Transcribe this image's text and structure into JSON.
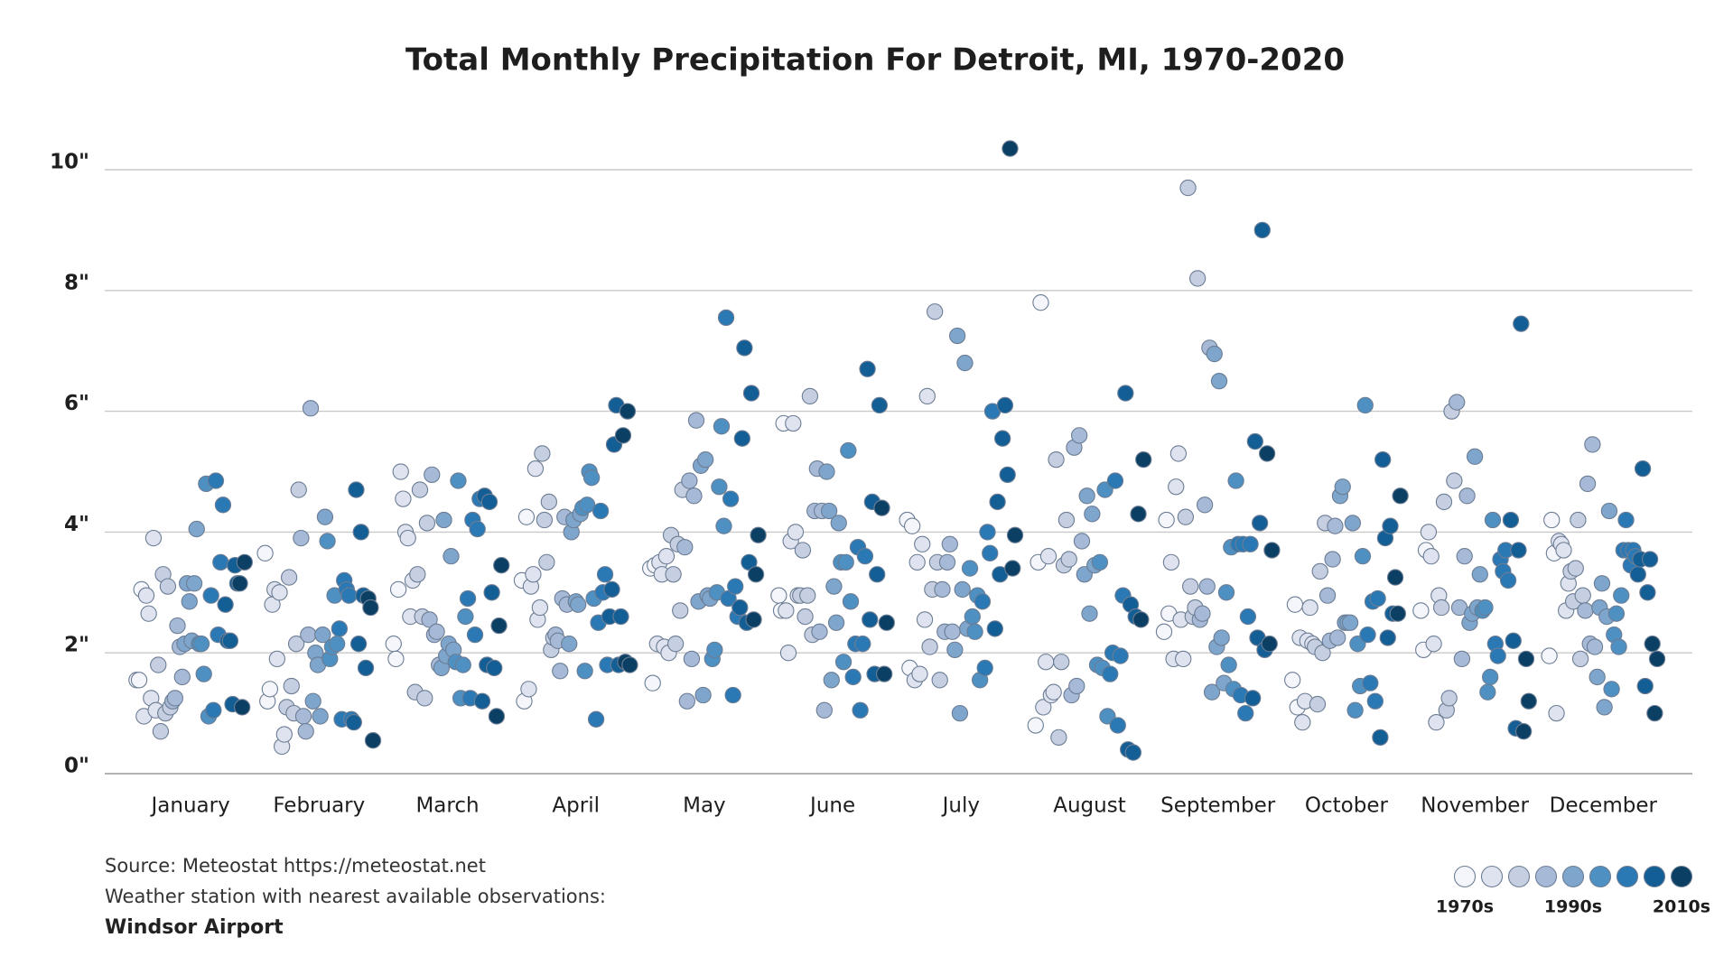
{
  "chart_data": {
    "type": "strip",
    "title": "Total Monthly Precipitation For Detroit, MI, 1970-2020",
    "ylim": [
      0,
      10
    ],
    "yticks": [
      {
        "value": 0,
        "label": "0\""
      },
      {
        "value": 2,
        "label": "2\""
      },
      {
        "value": 4,
        "label": "4\""
      },
      {
        "value": 6,
        "label": "6\""
      },
      {
        "value": 8,
        "label": "8\""
      },
      {
        "value": 10,
        "label": "10\""
      }
    ],
    "grid": true,
    "series": [
      {
        "name": "January",
        "values": [
          1.55,
          1.55,
          3.05,
          0.95,
          2.95,
          2.65,
          1.25,
          3.9,
          1.05,
          1.8,
          0.7,
          3.3,
          1.0,
          3.1,
          1.1,
          1.2,
          1.25,
          2.45,
          2.1,
          1.6,
          2.15,
          3.15,
          2.85,
          2.2,
          3.15,
          4.05,
          2.15,
          2.15,
          1.65,
          4.8,
          0.95,
          2.95,
          1.05,
          4.85,
          2.3,
          3.5,
          4.45,
          2.8,
          2.2,
          2.2,
          1.15,
          3.45,
          3.15,
          3.15,
          1.1,
          3.5
        ]
      },
      {
        "name": "February",
        "values": [
          3.65,
          1.2,
          1.4,
          2.8,
          3.05,
          1.9,
          3.0,
          0.45,
          0.65,
          1.1,
          3.25,
          1.45,
          1.0,
          2.15,
          4.7,
          3.9,
          0.95,
          0.7,
          2.3,
          6.05,
          1.2,
          2.0,
          1.8,
          0.95,
          2.3,
          4.25,
          3.85,
          1.9,
          2.1,
          2.95,
          2.15,
          2.4,
          0.9,
          3.2,
          3.05,
          2.95,
          0.9,
          0.85,
          4.7,
          2.15,
          4.0,
          2.95,
          1.75,
          2.9,
          2.75,
          0.55
        ]
      },
      {
        "name": "March",
        "values": [
          2.15,
          1.9,
          3.05,
          5.0,
          4.55,
          4.0,
          3.9,
          2.6,
          3.2,
          1.35,
          3.3,
          4.7,
          2.6,
          1.25,
          4.15,
          2.55,
          4.95,
          2.3,
          2.35,
          1.8,
          1.75,
          4.2,
          1.95,
          2.15,
          3.6,
          2.05,
          1.85,
          4.85,
          1.25,
          1.8,
          2.6,
          2.9,
          1.25,
          4.2,
          2.3,
          4.05,
          4.55,
          1.2,
          4.6,
          1.8,
          4.5,
          3.0,
          1.75,
          0.95,
          2.45,
          3.45
        ]
      },
      {
        "name": "April",
        "values": [
          3.2,
          1.2,
          4.25,
          1.4,
          3.1,
          3.3,
          5.05,
          2.55,
          2.75,
          5.3,
          4.2,
          3.5,
          4.5,
          2.05,
          2.25,
          2.3,
          2.2,
          1.7,
          2.9,
          4.25,
          2.8,
          2.15,
          4.0,
          4.2,
          2.85,
          2.8,
          4.3,
          4.4,
          1.7,
          4.45,
          5.0,
          4.9,
          2.9,
          0.9,
          2.5,
          4.35,
          3.0,
          3.3,
          1.8,
          2.6,
          3.05,
          5.45,
          6.1,
          1.8,
          2.6,
          5.6,
          1.85,
          6.0,
          1.8
        ]
      },
      {
        "name": "May",
        "values": [
          3.4,
          1.5,
          3.45,
          2.15,
          3.5,
          3.3,
          2.1,
          3.6,
          2.0,
          3.95,
          3.3,
          2.15,
          3.8,
          2.7,
          4.7,
          3.75,
          1.2,
          4.85,
          1.9,
          4.6,
          5.85,
          2.85,
          5.1,
          1.3,
          5.2,
          2.95,
          2.9,
          1.9,
          2.05,
          3.0,
          4.75,
          5.75,
          4.1,
          7.55,
          2.9,
          4.55,
          1.3,
          3.1,
          2.6,
          2.75,
          5.55,
          7.05,
          2.5,
          3.5,
          6.3,
          2.55,
          3.3,
          3.95
        ]
      },
      {
        "name": "June",
        "values": [
          2.95,
          2.7,
          5.8,
          2.7,
          2.0,
          3.85,
          5.8,
          4.0,
          2.95,
          2.95,
          3.7,
          2.6,
          2.95,
          6.25,
          2.3,
          4.35,
          5.05,
          2.35,
          4.35,
          1.05,
          5.0,
          4.35,
          1.55,
          3.1,
          2.5,
          4.15,
          3.5,
          1.85,
          3.5,
          5.35,
          2.85,
          1.6,
          2.15,
          3.75,
          1.05,
          2.15,
          3.6,
          6.7,
          2.55,
          4.5,
          1.65,
          3.3,
          6.1,
          4.4,
          1.65,
          2.5
        ]
      },
      {
        "name": "July",
        "values": [
          4.2,
          1.75,
          4.1,
          1.55,
          3.5,
          1.65,
          3.8,
          2.55,
          6.25,
          2.1,
          3.05,
          7.65,
          3.5,
          1.55,
          3.05,
          2.35,
          3.5,
          3.8,
          2.35,
          2.05,
          7.25,
          1.0,
          3.05,
          6.8,
          2.4,
          3.4,
          2.6,
          2.35,
          2.95,
          1.55,
          2.85,
          1.75,
          4.0,
          3.65,
          6.0,
          2.4,
          4.5,
          3.3,
          5.55,
          6.1,
          4.95,
          10.35,
          3.4,
          3.95
        ]
      },
      {
        "name": "August",
        "values": [
          0.8,
          3.5,
          7.8,
          1.1,
          1.85,
          3.6,
          1.3,
          1.35,
          5.2,
          0.6,
          1.85,
          3.45,
          4.2,
          3.55,
          1.3,
          5.4,
          1.45,
          5.6,
          3.85,
          3.3,
          4.6,
          2.65,
          4.3,
          3.45,
          1.8,
          3.5,
          1.75,
          4.7,
          0.95,
          1.65,
          2.0,
          4.85,
          0.8,
          1.95,
          2.95,
          6.3,
          0.4,
          2.8,
          0.35,
          2.6,
          4.3,
          2.55,
          5.2
        ]
      },
      {
        "name": "September",
        "values": [
          2.35,
          4.2,
          2.65,
          3.5,
          1.9,
          4.75,
          5.3,
          2.55,
          1.9,
          4.25,
          9.7,
          3.1,
          2.6,
          2.75,
          8.2,
          2.55,
          2.65,
          4.45,
          3.1,
          7.05,
          1.35,
          6.95,
          2.1,
          6.5,
          2.25,
          1.5,
          3.0,
          1.8,
          3.75,
          1.4,
          4.85,
          3.8,
          1.3,
          3.8,
          1.0,
          2.6,
          3.8,
          1.25,
          5.5,
          2.25,
          4.15,
          9.0,
          2.05,
          5.3,
          2.15,
          3.7
        ]
      },
      {
        "name": "October",
        "values": [
          1.55,
          2.8,
          1.1,
          2.25,
          0.85,
          1.2,
          2.2,
          2.75,
          2.15,
          2.1,
          1.15,
          3.35,
          2.0,
          4.15,
          2.95,
          2.2,
          3.55,
          4.1,
          2.25,
          4.6,
          4.75,
          2.5,
          2.5,
          2.5,
          4.15,
          1.05,
          2.15,
          1.45,
          3.6,
          6.1,
          2.3,
          1.5,
          2.85,
          1.2,
          2.9,
          0.6,
          5.2,
          3.9,
          2.25,
          4.1,
          2.65,
          3.25,
          2.65,
          4.6
        ]
      },
      {
        "name": "November",
        "values": [
          2.7,
          2.05,
          3.7,
          4.0,
          3.6,
          2.15,
          0.85,
          2.95,
          2.75,
          4.5,
          1.05,
          1.25,
          6.0,
          4.85,
          6.15,
          2.75,
          1.9,
          3.6,
          4.6,
          2.5,
          2.65,
          5.25,
          2.75,
          3.3,
          2.7,
          2.75,
          1.35,
          1.6,
          4.2,
          2.15,
          1.95,
          3.55,
          3.35,
          3.7,
          3.2,
          4.2,
          2.2,
          0.75,
          3.7,
          7.45,
          0.7,
          1.9,
          1.2
        ]
      },
      {
        "name": "December",
        "values": [
          1.95,
          4.2,
          3.65,
          1.0,
          3.85,
          3.8,
          3.7,
          2.7,
          3.15,
          3.35,
          2.85,
          3.4,
          4.2,
          1.9,
          2.95,
          2.7,
          4.8,
          2.15,
          5.45,
          2.1,
          1.6,
          2.75,
          3.15,
          1.1,
          2.6,
          4.35,
          1.4,
          2.3,
          2.65,
          2.1,
          2.95,
          3.7,
          4.2,
          3.7,
          3.45,
          3.7,
          3.6,
          3.3,
          3.55,
          5.05,
          1.45,
          3.0,
          3.55,
          2.15,
          1.0,
          1.9
        ]
      }
    ],
    "legend": [
      {
        "color": "#f5f6fb",
        "label": "1970s"
      },
      {
        "color": "#dfe3ef"
      },
      {
        "color": "#c6cfe2"
      },
      {
        "color": "#a6bad8"
      },
      {
        "color": "#7ea5cc",
        "label": "1990s"
      },
      {
        "color": "#4f90c2"
      },
      {
        "color": "#2a78b4"
      },
      {
        "color": "#145e96"
      },
      {
        "color": "#0b3f63",
        "label": "2010s"
      }
    ],
    "source": "Source: Meteostat https://meteostat.net",
    "note": "Weather station with nearest available observations:",
    "station": "Windsor Airport"
  }
}
